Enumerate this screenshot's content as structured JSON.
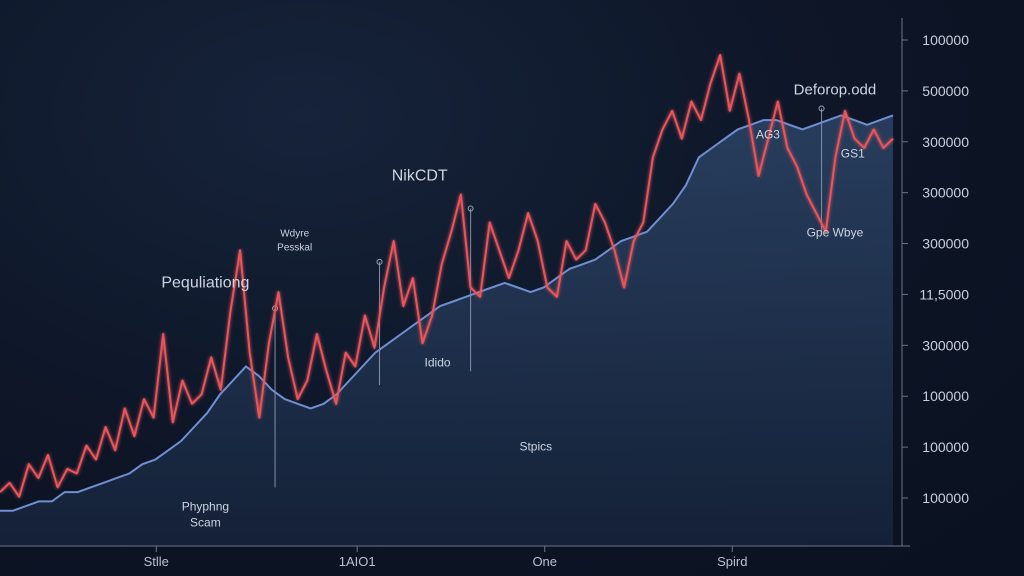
{
  "chart_data": {
    "type": "line",
    "title": "",
    "xlabel": "",
    "ylabel": "",
    "y_tick_labels": [
      "100000",
      "500000",
      "300000",
      "300000",
      "300000",
      "11,5000",
      "300000",
      "100000",
      "100000",
      "100000"
    ],
    "x_tick_labels": [
      "Stlle",
      "1AIO1",
      "One",
      "Spird"
    ],
    "grid": false,
    "legend": "none",
    "series": [
      {
        "color": "#e8555a",
        "values": [
          0.06,
          0.08,
          0.05,
          0.12,
          0.09,
          0.14,
          0.07,
          0.11,
          0.1,
          0.16,
          0.13,
          0.2,
          0.15,
          0.24,
          0.18,
          0.26,
          0.22,
          0.4,
          0.21,
          0.3,
          0.25,
          0.27,
          0.35,
          0.28,
          0.45,
          0.58,
          0.36,
          0.22,
          0.38,
          0.49,
          0.35,
          0.26,
          0.3,
          0.4,
          0.32,
          0.25,
          0.36,
          0.33,
          0.44,
          0.37,
          0.5,
          0.6,
          0.46,
          0.52,
          0.38,
          0.44,
          0.55,
          0.62,
          0.7,
          0.5,
          0.48,
          0.64,
          0.58,
          0.52,
          0.58,
          0.66,
          0.6,
          0.5,
          0.48,
          0.6,
          0.56,
          0.58,
          0.68,
          0.64,
          0.58,
          0.5,
          0.6,
          0.64,
          0.78,
          0.84,
          0.88,
          0.82,
          0.9,
          0.86,
          0.94,
          1.0,
          0.88,
          0.96,
          0.86,
          0.74,
          0.82,
          0.9,
          0.8,
          0.76,
          0.7,
          0.66,
          0.62,
          0.78,
          0.88,
          0.82,
          0.8,
          0.84,
          0.8,
          0.82
        ]
      },
      {
        "color": "#6f8fd1",
        "values": [
          0.02,
          0.02,
          0.03,
          0.04,
          0.04,
          0.06,
          0.06,
          0.07,
          0.08,
          0.09,
          0.1,
          0.12,
          0.13,
          0.15,
          0.17,
          0.2,
          0.23,
          0.27,
          0.3,
          0.33,
          0.31,
          0.28,
          0.26,
          0.25,
          0.24,
          0.25,
          0.27,
          0.3,
          0.33,
          0.36,
          0.38,
          0.4,
          0.42,
          0.44,
          0.46,
          0.47,
          0.48,
          0.49,
          0.5,
          0.51,
          0.5,
          0.49,
          0.5,
          0.52,
          0.54,
          0.55,
          0.56,
          0.58,
          0.6,
          0.61,
          0.62,
          0.65,
          0.68,
          0.72,
          0.78,
          0.8,
          0.82,
          0.84,
          0.85,
          0.86,
          0.86,
          0.85,
          0.84,
          0.85,
          0.86,
          0.87,
          0.86,
          0.85,
          0.86,
          0.87
        ]
      }
    ],
    "annotations": [
      {
        "label": "Deforop.odd",
        "x": 0.935,
        "y": 0.915
      },
      {
        "label": "AG3",
        "x": 0.86,
        "y": 0.82
      },
      {
        "label": "GS1",
        "x": 0.955,
        "y": 0.78
      },
      {
        "label": "NikCDT",
        "x": 0.47,
        "y": 0.73
      },
      {
        "label": "Wdyre Pesskal",
        "x": 0.33,
        "y": 0.61
      },
      {
        "label": "Pequliationg",
        "x": 0.23,
        "y": 0.5
      },
      {
        "label": "Idido",
        "x": 0.49,
        "y": 0.33
      },
      {
        "label": "Gpe Wbye",
        "x": 0.935,
        "y": 0.61
      },
      {
        "label": "Stpics",
        "x": 0.6,
        "y": 0.15
      },
      {
        "label": "Phyphng Scam",
        "x": 0.23,
        "y": 0.02
      }
    ]
  }
}
